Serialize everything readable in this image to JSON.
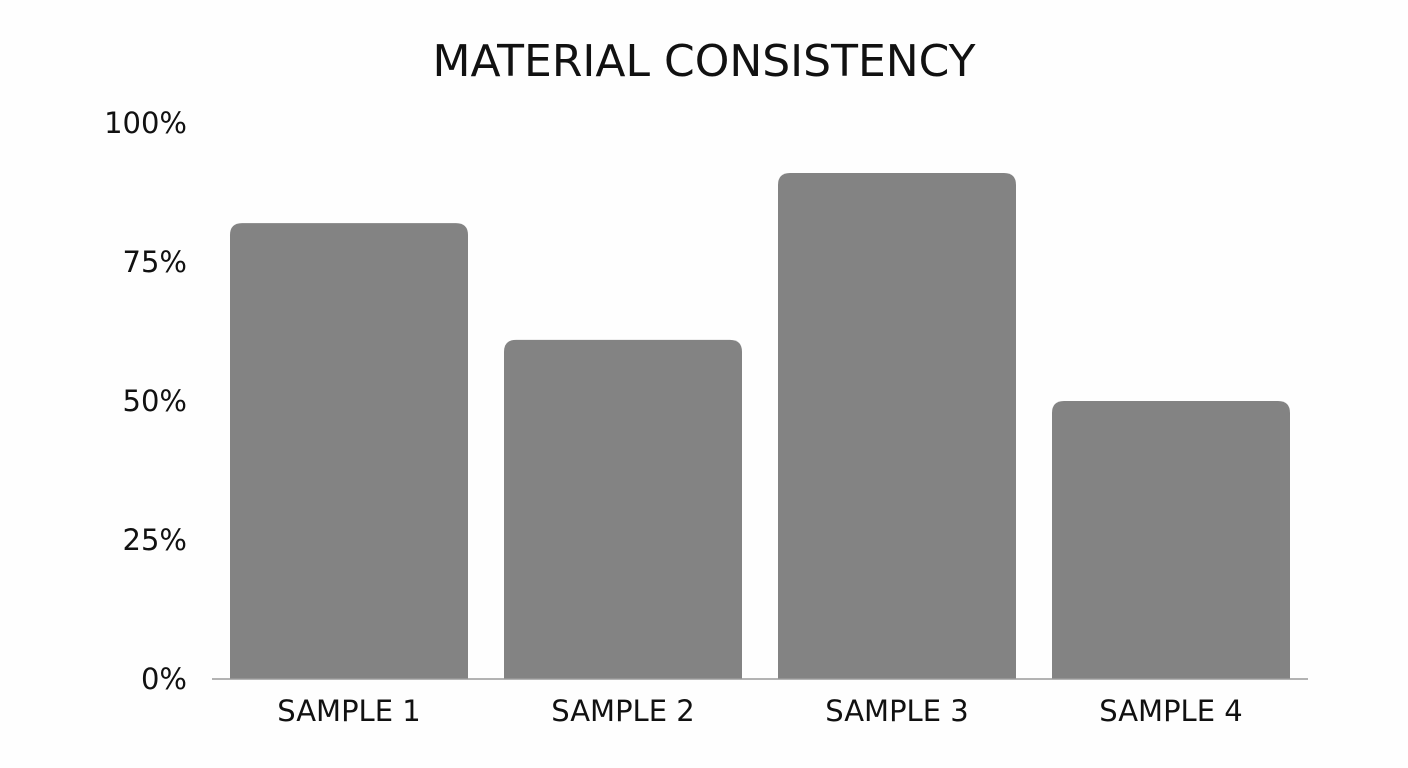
{
  "chart_data": {
    "type": "bar",
    "title": "MATERIAL CONSISTENCY",
    "xlabel": "",
    "ylabel": "",
    "categories": [
      "SAMPLE 1",
      "SAMPLE 2",
      "SAMPLE 3",
      "SAMPLE 4"
    ],
    "values": [
      82,
      61,
      91,
      50
    ],
    "ylim": [
      0,
      100
    ],
    "yticks": [
      "0%",
      "25%",
      "50%",
      "75%",
      "100%"
    ],
    "ytick_values": [
      0,
      25,
      50,
      75,
      100
    ],
    "grid": false,
    "legend": "none",
    "bar_color": "#838383",
    "axis_color": "#9a9a9a"
  }
}
